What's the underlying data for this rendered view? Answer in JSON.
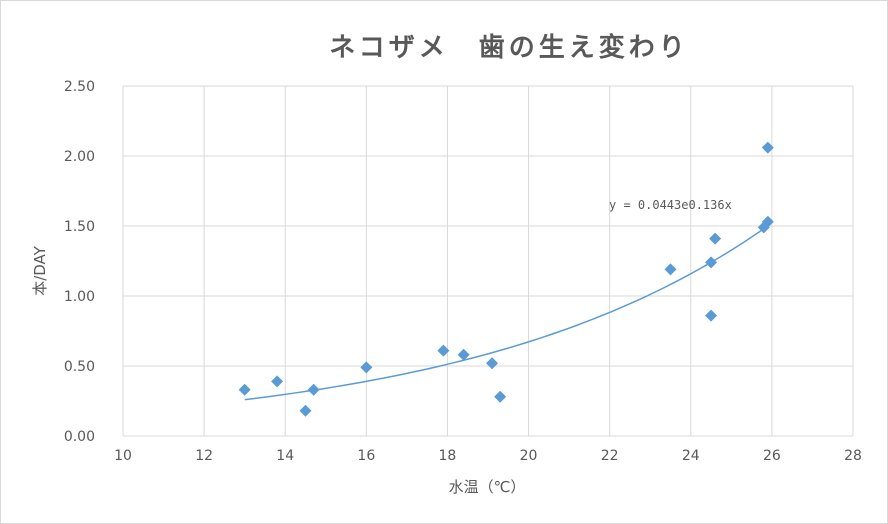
{
  "chart_data": {
    "type": "scatter",
    "title": "ネコザメ　歯の生え変わり",
    "xlabel": "水温（℃）",
    "ylabel": "本/DAY",
    "xlim": [
      10,
      28
    ],
    "ylim": [
      0,
      2.5
    ],
    "x_ticks": [
      10,
      12,
      14,
      16,
      18,
      20,
      22,
      24,
      26,
      28
    ],
    "y_ticks": [
      "0.00",
      "0.50",
      "1.00",
      "1.50",
      "2.00",
      "2.50"
    ],
    "grid": true,
    "marker_color": "#5b9bd5",
    "trendline_color": "#5b9bd5",
    "points": [
      {
        "x": 13.0,
        "y": 0.33
      },
      {
        "x": 13.8,
        "y": 0.39
      },
      {
        "x": 14.5,
        "y": 0.18
      },
      {
        "x": 14.7,
        "y": 0.33
      },
      {
        "x": 16.0,
        "y": 0.49
      },
      {
        "x": 17.9,
        "y": 0.61
      },
      {
        "x": 18.4,
        "y": 0.58
      },
      {
        "x": 19.1,
        "y": 0.52
      },
      {
        "x": 19.3,
        "y": 0.28
      },
      {
        "x": 23.5,
        "y": 1.19
      },
      {
        "x": 24.5,
        "y": 1.24
      },
      {
        "x": 24.5,
        "y": 0.86
      },
      {
        "x": 24.6,
        "y": 1.41
      },
      {
        "x": 25.8,
        "y": 1.49
      },
      {
        "x": 25.9,
        "y": 1.53
      },
      {
        "x": 25.9,
        "y": 2.06
      }
    ],
    "trendline": {
      "type": "exponential",
      "a": 0.0443,
      "b": 0.136,
      "x_range": [
        13.0,
        25.9
      ],
      "equation": "y = 0.0443e0.136x"
    }
  }
}
